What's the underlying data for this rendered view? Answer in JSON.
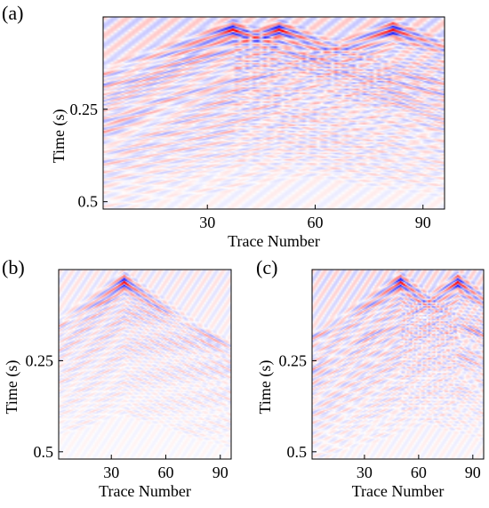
{
  "chart_data": [
    {
      "panel_label": "(a)",
      "type": "heatmap",
      "xlabel": "Trace Number",
      "ylabel": "Time (s)",
      "xlim": [
        1,
        96
      ],
      "ylim": [
        0,
        0.52
      ],
      "y_inverted": true,
      "xticks": [
        30,
        60,
        90
      ],
      "yticks": [
        0.25,
        0.5
      ],
      "ytick_labels": [
        "0.25",
        "0.5"
      ],
      "colormap": [
        "#0000ff",
        "#ffffff",
        "#ff0000"
      ],
      "sources": [
        {
          "trace": 37,
          "time": 0.035
        },
        {
          "trace": 50,
          "time": 0.035
        },
        {
          "trace": 82,
          "time": 0.035
        }
      ]
    },
    {
      "panel_label": "(b)",
      "type": "heatmap",
      "xlabel": "Trace Number",
      "ylabel": "Time (s)",
      "xlim": [
        1,
        96
      ],
      "ylim": [
        0,
        0.52
      ],
      "y_inverted": true,
      "xticks": [
        30,
        60,
        90
      ],
      "yticks": [
        0.25,
        0.5
      ],
      "ytick_labels": [
        "0.25",
        "0.5"
      ],
      "colormap": [
        "#0000ff",
        "#ffffff",
        "#ff0000"
      ],
      "sources": [
        {
          "trace": 37,
          "time": 0.035
        }
      ]
    },
    {
      "panel_label": "(c)",
      "type": "heatmap",
      "xlabel": "Trace Number",
      "ylabel": "Time (s)",
      "xlim": [
        1,
        96
      ],
      "ylim": [
        0,
        0.52
      ],
      "y_inverted": true,
      "xticks": [
        30,
        60,
        90
      ],
      "yticks": [
        0.25,
        0.5
      ],
      "ytick_labels": [
        "0.25",
        "0.5"
      ],
      "colormap": [
        "#0000ff",
        "#ffffff",
        "#ff0000"
      ],
      "sources": [
        {
          "trace": 50,
          "time": 0.035
        },
        {
          "trace": 82,
          "time": 0.035
        }
      ]
    }
  ]
}
